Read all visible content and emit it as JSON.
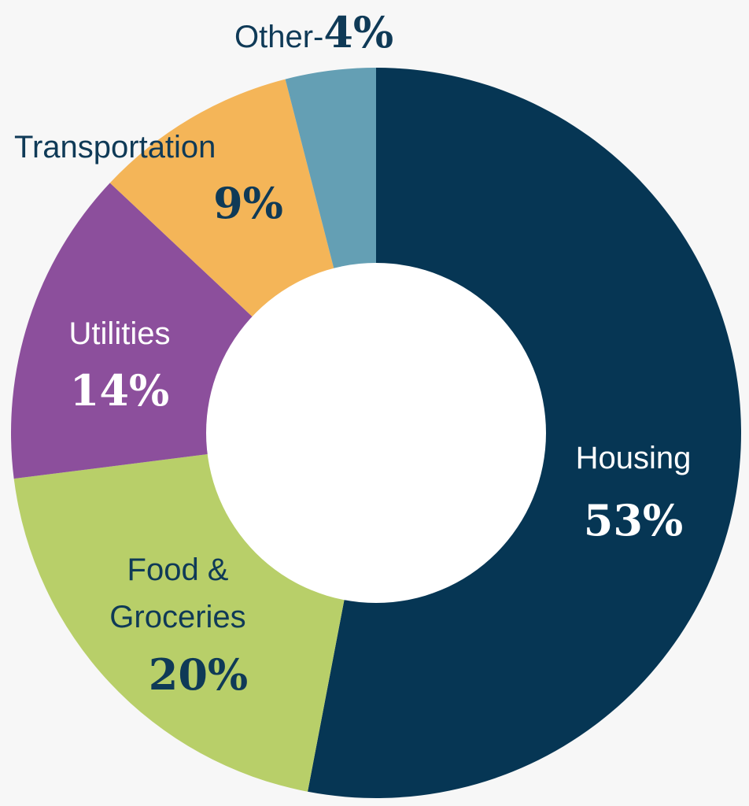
{
  "chart_data": {
    "type": "pie",
    "style": "donut",
    "categories": [
      "Housing",
      "Food & Groceries",
      "Utilities",
      "Transportation",
      "Other"
    ],
    "values": [
      53,
      20,
      14,
      9,
      4
    ],
    "unit": "%",
    "colors": [
      "#063654",
      "#b8cf69",
      "#8c4f9c",
      "#f4b558",
      "#649fb4"
    ],
    "labels": {
      "housing": {
        "name": "Housing",
        "pct": "53%"
      },
      "food": {
        "line1": "Food &",
        "line2": "Groceries",
        "pct": "20%"
      },
      "utilities": {
        "name": "Utilities",
        "pct": "14%"
      },
      "transportation": {
        "name": "Transportation",
        "pct": "9%"
      },
      "other": {
        "name": "Other-",
        "pct": "4%"
      }
    }
  }
}
